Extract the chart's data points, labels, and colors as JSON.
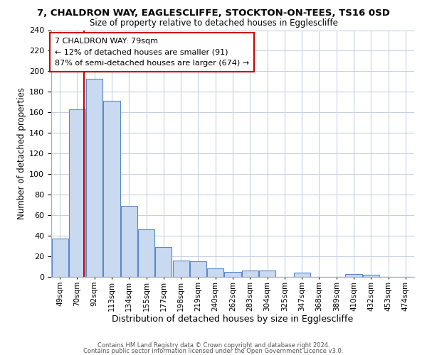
{
  "title_line1": "7, CHALDRON WAY, EAGLESCLIFFE, STOCKTON-ON-TEES, TS16 0SD",
  "title_line2": "Size of property relative to detached houses in Egglescliffe",
  "xlabel": "Distribution of detached houses by size in Egglescliffe",
  "ylabel": "Number of detached properties",
  "bar_labels": [
    "49sqm",
    "70sqm",
    "92sqm",
    "113sqm",
    "134sqm",
    "155sqm",
    "177sqm",
    "198sqm",
    "219sqm",
    "240sqm",
    "262sqm",
    "283sqm",
    "304sqm",
    "325sqm",
    "347sqm",
    "368sqm",
    "389sqm",
    "410sqm",
    "432sqm",
    "453sqm",
    "474sqm"
  ],
  "bar_values": [
    37,
    163,
    193,
    171,
    69,
    46,
    29,
    16,
    15,
    8,
    5,
    6,
    6,
    0,
    4,
    0,
    0,
    3,
    2,
    0,
    0
  ],
  "bar_color": "#c9d9f0",
  "bar_edge_color": "#5a8ac6",
  "ylim": [
    0,
    240
  ],
  "yticks": [
    0,
    20,
    40,
    60,
    80,
    100,
    120,
    140,
    160,
    180,
    200,
    220,
    240
  ],
  "property_line_label": "7 CHALDRON WAY: 79sqm",
  "annotation_line1": "← 12% of detached houses are smaller (91)",
  "annotation_line2": "87% of semi-detached houses are larger (674) →",
  "annotation_box_color": "#ffffff",
  "annotation_box_edge_color": "#cc0000",
  "red_line_color": "#cc0000",
  "footer_line1": "Contains HM Land Registry data © Crown copyright and database right 2024.",
  "footer_line2": "Contains public sector information licensed under the Open Government Licence v3.0.",
  "bg_color": "#ffffff",
  "grid_color": "#c8d0e0"
}
